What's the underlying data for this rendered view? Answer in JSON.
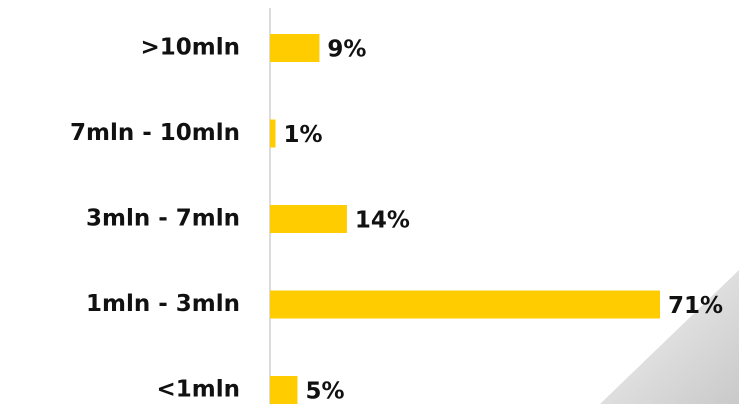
{
  "chart_data": {
    "type": "bar",
    "orientation": "horizontal",
    "categories": [
      ">10mln",
      "7mln - 10mln",
      "3mln - 7mln",
      "1mln - 3mln",
      "<1mln"
    ],
    "values": [
      9,
      1,
      14,
      71,
      5
    ],
    "value_labels": [
      "9%",
      "1%",
      "14%",
      "71%",
      "5%"
    ],
    "color": "#ffcc00"
  }
}
